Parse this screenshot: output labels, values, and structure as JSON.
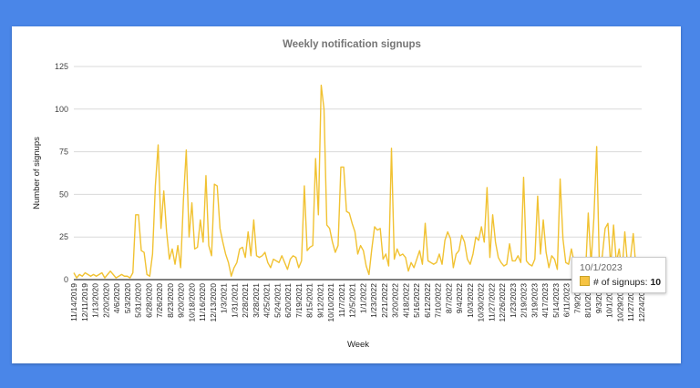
{
  "chart_data": {
    "type": "line",
    "title": "Weekly notification signups",
    "xlabel": "Week",
    "ylabel": "Number of signups",
    "ylim": [
      0,
      125
    ],
    "yticks": [
      0,
      25,
      50,
      75,
      100,
      125
    ],
    "grid": true,
    "legend": "none",
    "line_color": "#f1c232",
    "x_start": "11/14/2019",
    "x_step_days": 7,
    "xtick_labels": [
      "11/14/2019",
      "12/11/2019",
      "1/13/2020",
      "2/20/2020",
      "4/6/2020",
      "5/3/2020",
      "5/31/2020",
      "6/28/2020",
      "7/26/2020",
      "8/23/2020",
      "9/20/2020",
      "10/18/2020",
      "11/16/2020",
      "12/13/2020",
      "1/3/2021",
      "1/31/2021",
      "2/28/2021",
      "3/28/2021",
      "4/25/2021",
      "5/24/2021",
      "6/20/2021",
      "7/19/2021",
      "8/15/2021",
      "9/12/2021",
      "10/10/2021",
      "11/7/2021",
      "12/5/2021",
      "1/1/2022",
      "1/23/2022",
      "2/21/2022",
      "3/20/2022",
      "4/18/2022",
      "5/16/2022",
      "6/12/2022",
      "7/10/2022",
      "8/7/2022",
      "9/4/2022",
      "10/3/2022",
      "10/30/2022",
      "11/27/2022",
      "12/26/2022",
      "1/23/2023",
      "2/19/2023",
      "3/19/2023",
      "4/17/2023",
      "5/14/2023",
      "6/11/2023",
      "7/9/2023",
      "8/10/2023",
      "9/3/2023",
      "10/1/2023",
      "10/29/2023",
      "11/27/2023",
      "12/24/2023"
    ],
    "series": [
      {
        "values": [
          4,
          1,
          3,
          2,
          4,
          3,
          2,
          3,
          2,
          3,
          4,
          1,
          3,
          5,
          3,
          1,
          2,
          3,
          2,
          2,
          1,
          4,
          38,
          38,
          17,
          16,
          3,
          2,
          15,
          55,
          79,
          30,
          52,
          28,
          12,
          18,
          9,
          20,
          7,
          47,
          76,
          25,
          45,
          18,
          19,
          35,
          22,
          61,
          20,
          14,
          56,
          55,
          30,
          22,
          15,
          10,
          2,
          7,
          10,
          18,
          19,
          13,
          28,
          14,
          35,
          14,
          13,
          14,
          16,
          10,
          7,
          12,
          11,
          10,
          14,
          10,
          6,
          12,
          14,
          13,
          7,
          11,
          55,
          17,
          19,
          20,
          71,
          38,
          114,
          100,
          32,
          30,
          22,
          16,
          20,
          66,
          66,
          40,
          39,
          33,
          28,
          15,
          20,
          17,
          8,
          3,
          18,
          31,
          29,
          30,
          12,
          15,
          8,
          77,
          12,
          18,
          14,
          15,
          13,
          5,
          10,
          7,
          12,
          17,
          9,
          33,
          11,
          10,
          9,
          10,
          15,
          9,
          23,
          28,
          24,
          7,
          15,
          17,
          26,
          22,
          12,
          9,
          15,
          25,
          23,
          31,
          22,
          54,
          13,
          38,
          22,
          13,
          10,
          8,
          9,
          21,
          11,
          11,
          14,
          10,
          60,
          11,
          9,
          8,
          12,
          49,
          15,
          35,
          16,
          7,
          14,
          12,
          6,
          59,
          24,
          10,
          9,
          18,
          10,
          12,
          7,
          5,
          3,
          39,
          9,
          36,
          78,
          5,
          14,
          30,
          33,
          8,
          32,
          10,
          18,
          4,
          28,
          8,
          12,
          27,
          6,
          4,
          3
        ]
      }
    ]
  },
  "tooltip": {
    "date": "10/1/2023",
    "label": "# of signups:",
    "value": "10"
  }
}
